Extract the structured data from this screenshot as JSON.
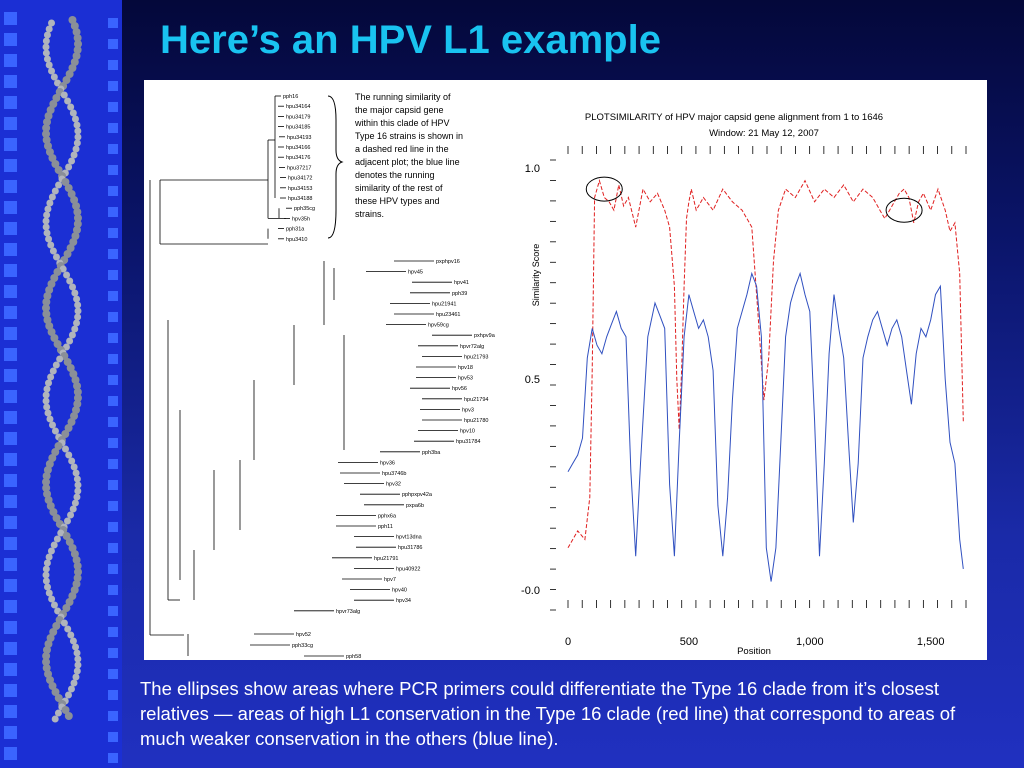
{
  "slide": {
    "title": "Here’s an HPV L1 example",
    "caption": "The ellipses show areas where PCR primers could differentiate the Type 16 clade from it’s closest relatives — areas of high L1 conservation in the Type 16 clade (red line) that correspond to areas of much weaker conservation in the others (blue line)."
  },
  "tree": {
    "annotation_lines": [
      "The running similarity of",
      "the major capsid gene",
      "within this clade of HPV",
      "Type 16 strains is shown in",
      "a dashed red line in the",
      "adjacent plot; the blue line",
      "denotes the running",
      "similarity of the rest of",
      "these HPV types and",
      "strains."
    ],
    "leaves": [
      "pph16",
      "hpu34164",
      "hpu34179",
      "hpu34185",
      "hpu34193",
      "hpu34166",
      "hpu34176",
      "hpu37217",
      "hpu34172",
      "hpu34153",
      "hpu34188",
      "pph35cg",
      "hpv35h",
      "pph31a",
      "hpu3410",
      "pxphpv16",
      "hpv45",
      "hpv41",
      "pph39",
      "hpu21941",
      "hpu23461",
      "hpv59cg",
      "pxhpv9a",
      "hpvr72alg",
      "hpu21793",
      "hpv18",
      "hpv53",
      "hpv56",
      "hpu21794",
      "hpv3",
      "hpu21780",
      "hpv10",
      "hpu31784",
      "pph3ba",
      "hpv36",
      "hpu3746b",
      "hpv32",
      "pphpxpv42a",
      "pxpa6b",
      "pphx6a",
      "pph11",
      "hpvt13dna",
      "hpu31786",
      "hpu21791",
      "hpu40922",
      "hpv7",
      "hpv40",
      "hpv34",
      "hpvr73alg",
      "hpv52",
      "pph33cg",
      "pph58"
    ]
  },
  "chart_data": {
    "type": "line",
    "title": "PLOTSIMILARITY of HPV major capsid gene alignment from 1 to 1646",
    "subtitle": "Window: 21  May 12, 2007",
    "xlabel": "Position",
    "ylabel": "Similarity Score",
    "xlim": [
      0,
      1646
    ],
    "ylim": [
      0.0,
      1.0
    ],
    "x_ticks": [
      "0",
      "500",
      "1,000",
      "1,500"
    ],
    "y_ticks": [
      "-0.0",
      "0.5",
      "1.0"
    ],
    "series": [
      {
        "color": "#e02020",
        "style": "dashed",
        "x": [
          0,
          40,
          70,
          90,
          100,
          110,
          130,
          150,
          170,
          190,
          210,
          230,
          250,
          280,
          310,
          340,
          370,
          400,
          420,
          440,
          450,
          460,
          470,
          480,
          490,
          500,
          510,
          530,
          560,
          600,
          640,
          680,
          720,
          760,
          790,
          810,
          830,
          850,
          870,
          900,
          940,
          980,
          1020,
          1060,
          1100,
          1140,
          1180,
          1220,
          1260,
          1290,
          1310,
          1330,
          1350,
          1370,
          1390,
          1410,
          1430,
          1450,
          1470,
          1500,
          1530,
          1560,
          1580,
          1600,
          1620,
          1635
        ],
        "y": [
          0.1,
          0.14,
          0.12,
          0.22,
          0.52,
          0.93,
          0.97,
          0.93,
          0.92,
          0.9,
          0.96,
          0.91,
          0.93,
          0.86,
          0.95,
          0.92,
          0.94,
          0.9,
          0.86,
          0.72,
          0.5,
          0.38,
          0.52,
          0.72,
          0.88,
          0.92,
          0.95,
          0.9,
          0.93,
          0.9,
          0.95,
          0.92,
          0.9,
          0.86,
          0.62,
          0.45,
          0.55,
          0.78,
          0.9,
          0.95,
          0.93,
          0.97,
          0.92,
          0.95,
          0.93,
          0.96,
          0.92,
          0.95,
          0.93,
          0.9,
          0.88,
          0.9,
          0.92,
          0.94,
          0.95,
          0.93,
          0.87,
          0.92,
          0.94,
          0.9,
          0.95,
          0.9,
          0.85,
          0.87,
          0.75,
          0.4
        ]
      },
      {
        "color": "#3050c0",
        "style": "solid",
        "x": [
          0,
          20,
          40,
          60,
          80,
          100,
          120,
          140,
          160,
          180,
          200,
          220,
          240,
          260,
          280,
          300,
          330,
          360,
          380,
          400,
          420,
          440,
          460,
          480,
          500,
          520,
          540,
          560,
          580,
          600,
          620,
          640,
          660,
          680,
          700,
          720,
          740,
          760,
          780,
          800,
          820,
          840,
          860,
          880,
          900,
          920,
          940,
          960,
          980,
          1000,
          1020,
          1040,
          1060,
          1080,
          1100,
          1120,
          1140,
          1160,
          1180,
          1200,
          1220,
          1240,
          1260,
          1280,
          1300,
          1320,
          1340,
          1360,
          1380,
          1400,
          1420,
          1440,
          1460,
          1480,
          1500,
          1520,
          1540,
          1560,
          1580,
          1600,
          1620,
          1635
        ],
        "y": [
          0.28,
          0.3,
          0.32,
          0.36,
          0.55,
          0.62,
          0.58,
          0.56,
          0.6,
          0.63,
          0.66,
          0.62,
          0.6,
          0.28,
          0.08,
          0.3,
          0.6,
          0.68,
          0.65,
          0.62,
          0.25,
          0.08,
          0.35,
          0.6,
          0.7,
          0.66,
          0.62,
          0.64,
          0.6,
          0.52,
          0.2,
          0.08,
          0.22,
          0.45,
          0.62,
          0.66,
          0.7,
          0.75,
          0.72,
          0.6,
          0.1,
          0.02,
          0.1,
          0.35,
          0.6,
          0.68,
          0.72,
          0.75,
          0.7,
          0.66,
          0.4,
          0.08,
          0.3,
          0.56,
          0.7,
          0.62,
          0.55,
          0.35,
          0.16,
          0.3,
          0.55,
          0.6,
          0.64,
          0.66,
          0.62,
          0.58,
          0.62,
          0.64,
          0.6,
          0.52,
          0.44,
          0.56,
          0.62,
          0.6,
          0.64,
          0.7,
          0.72,
          0.5,
          0.35,
          0.3,
          0.12,
          0.05
        ]
      }
    ],
    "highlights": [
      {
        "x": 150,
        "y": 0.95
      },
      {
        "x": 1390,
        "y": 0.9
      }
    ]
  }
}
